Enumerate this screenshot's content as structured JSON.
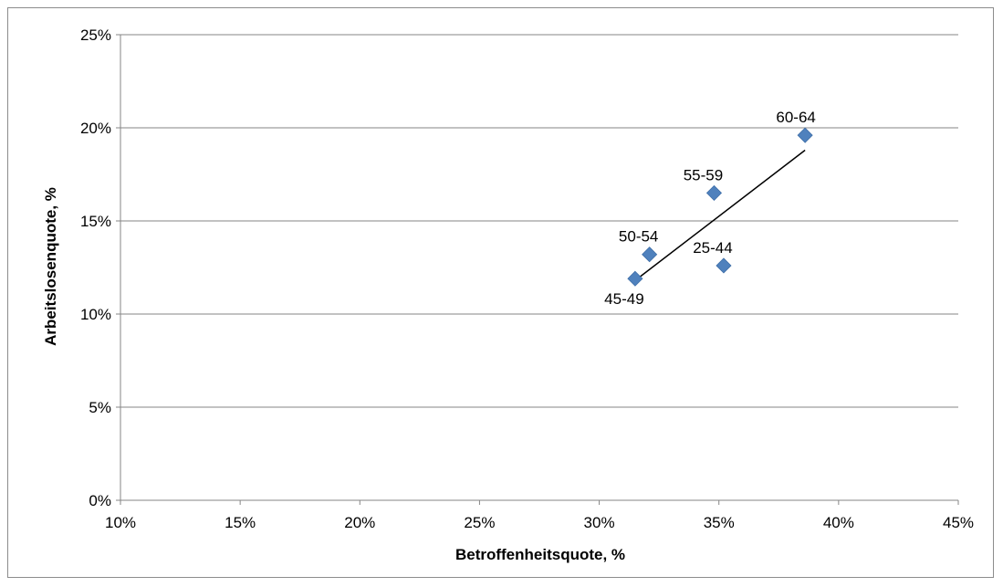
{
  "chart_data": {
    "type": "scatter",
    "title": "",
    "xlabel": "Betroffenheitsquote, %",
    "ylabel": "Arbeitslosenquote, %",
    "xlim": [
      0.1,
      0.45
    ],
    "ylim": [
      0.0,
      0.25
    ],
    "x_ticks": [
      0.1,
      0.15,
      0.2,
      0.25,
      0.3,
      0.35,
      0.4,
      0.45
    ],
    "x_tick_labels": [
      "10%",
      "15%",
      "20%",
      "25%",
      "30%",
      "35%",
      "40%",
      "45%"
    ],
    "y_ticks": [
      0.0,
      0.05,
      0.1,
      0.15,
      0.2,
      0.25
    ],
    "y_tick_labels": [
      "0%",
      "5%",
      "10%",
      "15%",
      "20%",
      "25%"
    ],
    "grid": "horizontal",
    "marker": "diamond",
    "marker_color": "#4f81bd",
    "points": [
      {
        "label": "45-49",
        "x": 0.315,
        "y": 0.119,
        "label_pos": "below-left"
      },
      {
        "label": "50-54",
        "x": 0.321,
        "y": 0.132,
        "label_pos": "above-left"
      },
      {
        "label": "55-59",
        "x": 0.348,
        "y": 0.165,
        "label_pos": "above-left"
      },
      {
        "label": "25-44",
        "x": 0.352,
        "y": 0.126,
        "label_pos": "above-left"
      },
      {
        "label": "60-64",
        "x": 0.386,
        "y": 0.196,
        "label_pos": "above"
      }
    ],
    "trendline": {
      "type": "linear",
      "x": [
        0.315,
        0.386
      ],
      "y": [
        0.118,
        0.188
      ],
      "color": "#000000"
    }
  }
}
